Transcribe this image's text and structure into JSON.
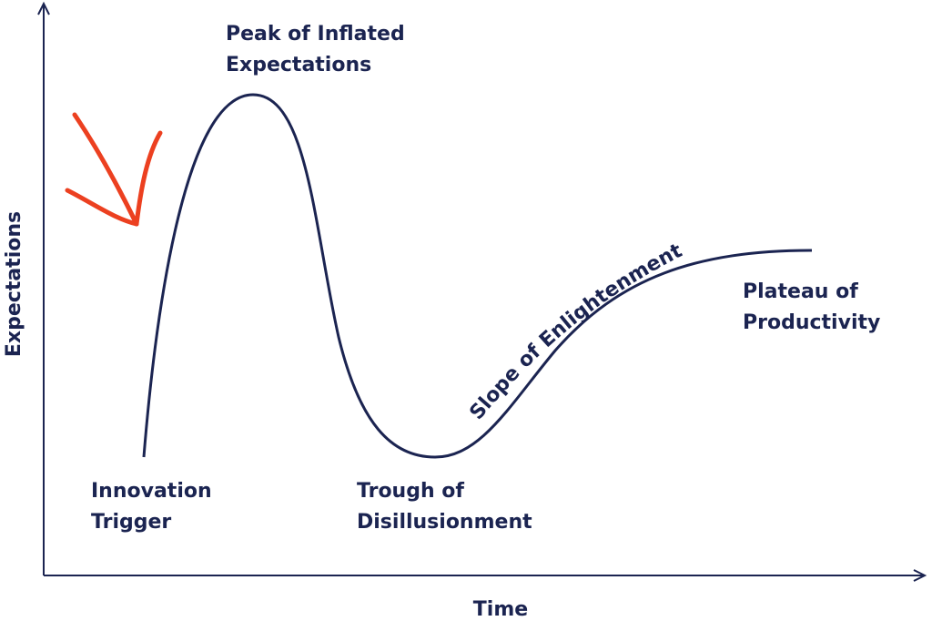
{
  "axes": {
    "y_label": "Expectations",
    "x_label": "Time"
  },
  "phases": [
    {
      "lines": [
        "Innovation",
        "Trigger"
      ]
    },
    {
      "lines": [
        "Peak of Inflated",
        "Expectations"
      ]
    },
    {
      "lines": [
        "Trough of",
        "Disillusionment"
      ]
    },
    {
      "lines": [
        "Slope of Enlightenment"
      ]
    },
    {
      "lines": [
        "Plateau of",
        "Productivity"
      ]
    }
  ]
}
